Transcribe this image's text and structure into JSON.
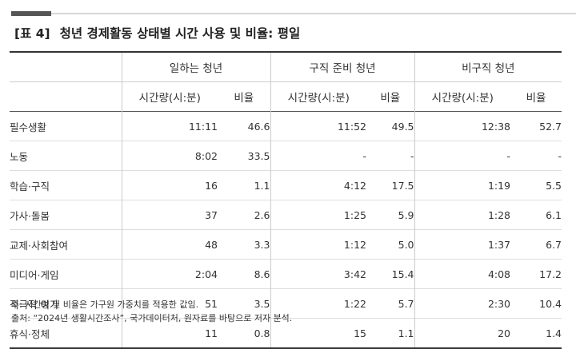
{
  "title": {
    "tag": "[표 4]",
    "text": "청년 경제활동 상태별 시간 사용 및 비율: 평일"
  },
  "groups": [
    "일하는 청년",
    "구직 준비 청년",
    "비구직 청년"
  ],
  "subheaders": {
    "time": "시간량(시:분)",
    "ratio": "비율"
  },
  "rows": [
    {
      "label": "필수생활",
      "cells": [
        "11:11",
        "46.6",
        "11:52",
        "49.5",
        "12:38",
        "52.7"
      ]
    },
    {
      "label": "노동",
      "cells": [
        "8:02",
        "33.5",
        "-",
        "-",
        "-",
        "-"
      ]
    },
    {
      "label": "학습·구직",
      "cells": [
        "16",
        "1.1",
        "4:12",
        "17.5",
        "1:19",
        "5.5"
      ]
    },
    {
      "label": "가사·돌봄",
      "cells": [
        "37",
        "2.6",
        "1:25",
        "5.9",
        "1:28",
        "6.1"
      ]
    },
    {
      "label": "교제·사회참여",
      "cells": [
        "48",
        "3.3",
        "1:12",
        "5.0",
        "1:37",
        "6.7"
      ]
    },
    {
      "label": "미디어·게임",
      "cells": [
        "2:04",
        "8.6",
        "3:42",
        "15.4",
        "4:08",
        "17.2"
      ]
    },
    {
      "label": "적극적 여가",
      "cells": [
        "51",
        "3.5",
        "1:22",
        "5.7",
        "2:30",
        "10.4"
      ]
    },
    {
      "label": "휴식·정체",
      "cells": [
        "11",
        "0.8",
        "15",
        "1.1",
        "20",
        "1.4"
      ]
    }
  ],
  "footnotes": {
    "note": "주: 시간량 및 비율은 가구원 가중치를 적용한 값임.",
    "source": "출처: “2024년 생활시간조사”, 국가데이터처, 원자료를 바탕으로 저자 분석."
  }
}
